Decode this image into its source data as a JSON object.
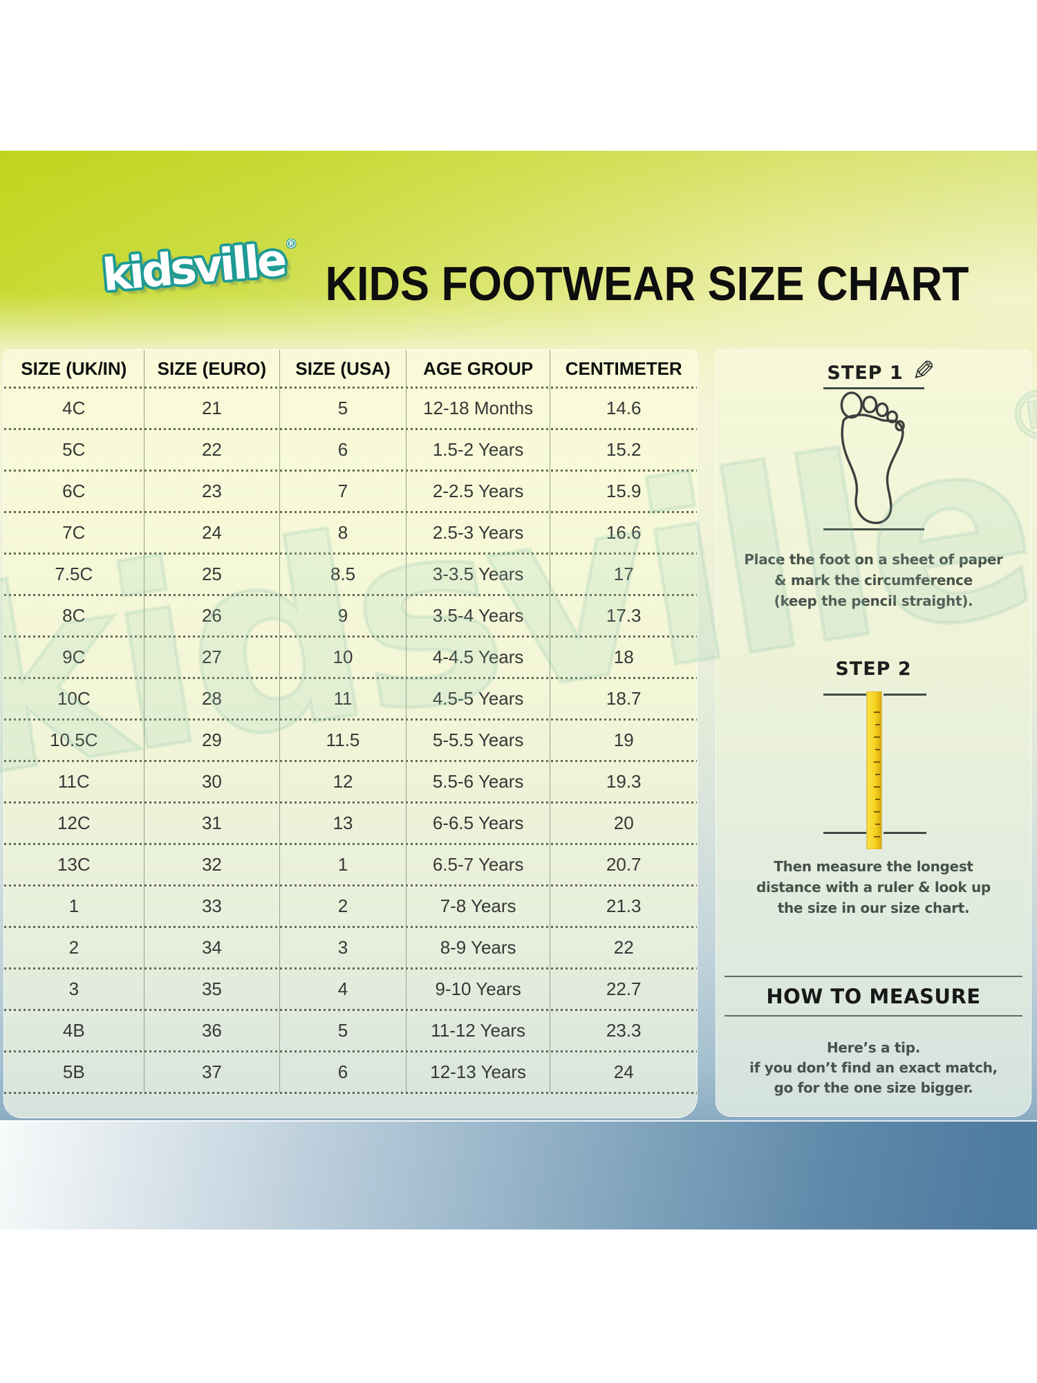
{
  "header": {
    "logo_text": "kidsville",
    "logo_reg": "®",
    "title": "KIDS FOOTWEAR SIZE CHART"
  },
  "watermark": {
    "text": "kidsville",
    "reg": "®"
  },
  "icons": {
    "pencil": "✎"
  },
  "table": {
    "columns": [
      "SIZE (UK/IN)",
      "SIZE (EURO)",
      "SIZE (USA)",
      "AGE GROUP",
      "CENTIMETER"
    ],
    "rows": [
      [
        "4C",
        "21",
        "5",
        "12-18 Months",
        "14.6"
      ],
      [
        "5C",
        "22",
        "6",
        "1.5-2 Years",
        "15.2"
      ],
      [
        "6C",
        "23",
        "7",
        "2-2.5 Years",
        "15.9"
      ],
      [
        "7C",
        "24",
        "8",
        "2.5-3 Years",
        "16.6"
      ],
      [
        "7.5C",
        "25",
        "8.5",
        "3-3.5 Years",
        "17"
      ],
      [
        "8C",
        "26",
        "9",
        "3.5-4 Years",
        "17.3"
      ],
      [
        "9C",
        "27",
        "10",
        "4-4.5 Years",
        "18"
      ],
      [
        "10C",
        "28",
        "11",
        "4.5-5 Years",
        "18.7"
      ],
      [
        "10.5C",
        "29",
        "11.5",
        "5-5.5 Years",
        "19"
      ],
      [
        "11C",
        "30",
        "12",
        "5.5-6 Years",
        "19.3"
      ],
      [
        "12C",
        "31",
        "13",
        "6-6.5 Years",
        "20"
      ],
      [
        "13C",
        "32",
        "1",
        "6.5-7 Years",
        "20.7"
      ],
      [
        "1",
        "33",
        "2",
        "7-8 Years",
        "21.3"
      ],
      [
        "2",
        "34",
        "3",
        "8-9 Years",
        "22"
      ],
      [
        "3",
        "35",
        "4",
        "9-10 Years",
        "22.7"
      ],
      [
        "4B",
        "36",
        "5",
        "11-12 Years",
        "23.3"
      ],
      [
        "5B",
        "37",
        "6",
        "12-13 Years",
        "24"
      ]
    ]
  },
  "steps": {
    "step1": {
      "label": "STEP 1",
      "lines": [
        "Place the foot on a sheet of paper",
        "& mark the circumference",
        "(keep the pencil straight)."
      ]
    },
    "step2": {
      "label": "STEP 2",
      "lines": [
        "Then measure the longest",
        "distance with a ruler & look up",
        "the size in our size chart."
      ]
    }
  },
  "how_to_measure": {
    "title": "HOW TO MEASURE",
    "tip_lines": [
      "Here’s a tip.",
      "if you don’t find an exact match,",
      "go for the one size bigger."
    ]
  },
  "colors": {
    "chartreuse_top": "#c7da30",
    "panel_yellow": "#f5f7d8",
    "steel_blue": "#4f7ba0",
    "logo_teal": "#1e9a94",
    "ruler_yellow": "#f7d420"
  }
}
